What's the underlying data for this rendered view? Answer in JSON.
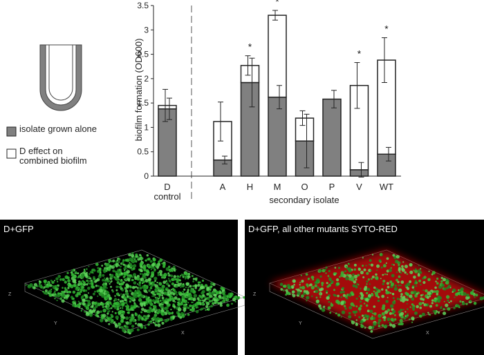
{
  "chart_data": {
    "type": "stacked-bar",
    "y_label": "biofilm formation (OD600)",
    "x_label": "secondary isolate",
    "categories": [
      "D control",
      "A",
      "H",
      "M",
      "O",
      "P",
      "V",
      "WT"
    ],
    "series": [
      {
        "name": "isolate grown alone",
        "color": "#808080",
        "values": [
          1.38,
          0.33,
          1.92,
          1.62,
          0.72,
          1.58,
          0.13,
          0.45
        ],
        "errors": [
          0.22,
          0.08,
          0.5,
          0.24,
          0.55,
          0.18,
          0.15,
          0.14
        ]
      },
      {
        "name": "D effect on combined biofilm",
        "color": "#ffffff",
        "values": [
          0.07,
          0.79,
          0.35,
          1.68,
          0.47,
          null,
          1.73,
          1.93
        ],
        "errors": [
          0.33,
          0.4,
          0.2,
          0.1,
          0.15,
          null,
          0.47,
          0.46
        ]
      }
    ],
    "significance": [
      null,
      null,
      "*",
      "*",
      null,
      null,
      "*",
      "*"
    ],
    "ylim": [
      0,
      3.5
    ],
    "yticks": [
      0,
      0.5,
      1,
      1.5,
      2,
      2.5,
      3,
      3.5
    ]
  },
  "images": [
    {
      "title": "D+GFP",
      "axes": [
        "Z",
        "Y",
        "X"
      ]
    },
    {
      "title": "D+GFP, all other mutants SYTO-RED",
      "axes": [
        "Z",
        "Y",
        "X"
      ]
    }
  ]
}
